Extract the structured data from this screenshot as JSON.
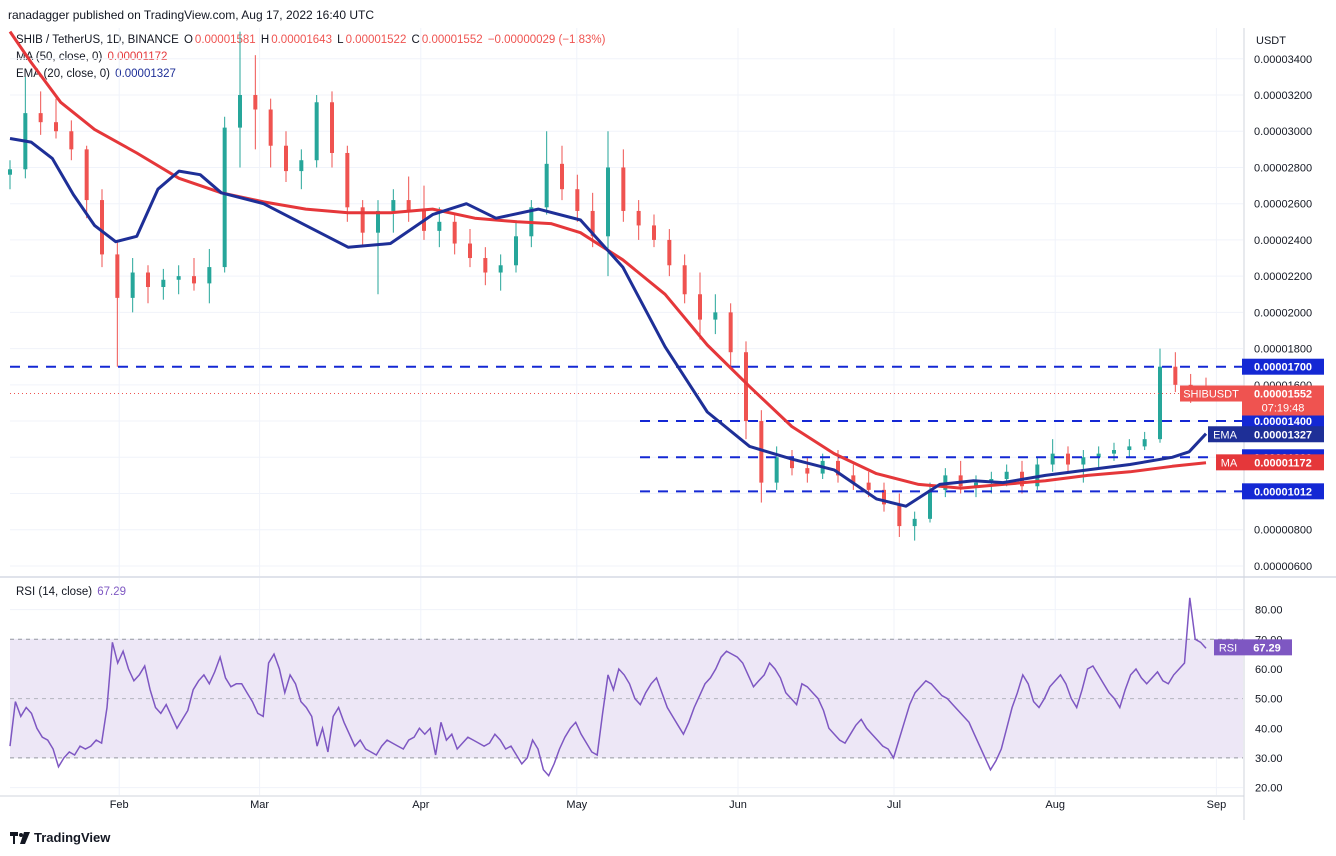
{
  "header": {
    "published_line": "ranadagger published on TradingView.com, Aug 17, 2022 16:40 UTC"
  },
  "legend": {
    "symbol": "SHIB / TetherUS, 1D, BINANCE",
    "o_label": "O",
    "o_value": "0.00001581",
    "h_label": "H",
    "h_value": "0.00001643",
    "l_label": "L",
    "l_value": "0.00001522",
    "c_label": "C",
    "c_value": "0.00001552",
    "change": "−0.00000029 (−1.83%)",
    "ma_label": "MA (50, close, 0)",
    "ma_value": "0.00001172",
    "ema_label": "EMA (20, close, 0)",
    "ema_value": "0.00001327",
    "rsi_label": "RSI (14, close)",
    "rsi_value": "67.29"
  },
  "footer": {
    "brand": "TradingView"
  },
  "colors": {
    "up": "#26a69a",
    "down": "#ef5350",
    "ema": "#1e2f97",
    "ma": "#e5373a",
    "level_line": "#1428d4",
    "rsi": "#7e57c2",
    "rsi_band": "#ede7f6",
    "tag_blue": "#1428d4",
    "tag_red": "#ef5350",
    "tag_purple": "#7e57c2"
  },
  "chart_data": [
    {
      "type": "candlestick",
      "title": "SHIB / TetherUS, 1D, BINANCE",
      "y_axis_unit": "USDT",
      "ylim": [
        6e-06,
        3.55e-05
      ],
      "x_ticks": [
        "Feb",
        "Mar",
        "Apr",
        "May",
        "Jun",
        "Jul",
        "Aug",
        "Sep"
      ],
      "y_ticks": [
        "0.00000600",
        "0.00000800",
        "0.00001000",
        "0.00001200",
        "0.00001400",
        "0.00001600",
        "0.00001800",
        "0.00002000",
        "0.00002200",
        "0.00002400",
        "0.00002600",
        "0.00002800",
        "0.00003000",
        "0.00003200",
        "0.00003400"
      ],
      "series": [
        {
          "name": "MA",
          "label": "MA (50, close, 0)",
          "last": "0.00001172",
          "points": [
            [
              0,
              3.55e-05
            ],
            [
              5,
              3.38e-05
            ],
            [
              12,
              3.16e-05
            ],
            [
              20,
              3.01e-05
            ],
            [
              30,
              2.88e-05
            ],
            [
              40,
              2.74e-05
            ],
            [
              50,
              2.66e-05
            ],
            [
              60,
              2.61e-05
            ],
            [
              70,
              2.57e-05
            ],
            [
              80,
              2.55e-05
            ],
            [
              90,
              2.55e-05
            ],
            [
              100,
              2.57e-05
            ],
            [
              110,
              2.52e-05
            ],
            [
              120,
              2.5e-05
            ],
            [
              128,
              2.49e-05
            ],
            [
              135,
              2.44e-05
            ],
            [
              145,
              2.29e-05
            ],
            [
              155,
              2.1e-05
            ],
            [
              165,
              1.82e-05
            ],
            [
              175,
              1.59e-05
            ],
            [
              185,
              1.37e-05
            ],
            [
              195,
              1.22e-05
            ],
            [
              205,
              1.11e-05
            ],
            [
              215,
              1.05e-05
            ],
            [
              225,
              1.03e-05
            ],
            [
              235,
              1.05e-05
            ],
            [
              245,
              1.07e-05
            ],
            [
              255,
              1.1e-05
            ],
            [
              265,
              1.12e-05
            ],
            [
              275,
              1.15e-05
            ],
            [
              283,
              1.17e-05
            ]
          ]
        },
        {
          "name": "EMA",
          "label": "EMA (20, close, 0)",
          "last": "0.00001327",
          "points": [
            [
              0,
              2.96e-05
            ],
            [
              5,
              2.94e-05
            ],
            [
              10,
              2.85e-05
            ],
            [
              15,
              2.65e-05
            ],
            [
              20,
              2.48e-05
            ],
            [
              25,
              2.39e-05
            ],
            [
              30,
              2.42e-05
            ],
            [
              35,
              2.68e-05
            ],
            [
              40,
              2.78e-05
            ],
            [
              45,
              2.76e-05
            ],
            [
              50,
              2.66e-05
            ],
            [
              60,
              2.6e-05
            ],
            [
              70,
              2.48e-05
            ],
            [
              80,
              2.36e-05
            ],
            [
              90,
              2.38e-05
            ],
            [
              100,
              2.54e-05
            ],
            [
              108,
              2.6e-05
            ],
            [
              115,
              2.52e-05
            ],
            [
              125,
              2.57e-05
            ],
            [
              135,
              2.51e-05
            ],
            [
              145,
              2.25e-05
            ],
            [
              155,
              1.81e-05
            ],
            [
              165,
              1.45e-05
            ],
            [
              175,
              1.26e-05
            ],
            [
              185,
              1.19e-05
            ],
            [
              195,
              1.13e-05
            ],
            [
              205,
              9.7e-06
            ],
            [
              212,
              9.3e-06
            ],
            [
              220,
              1.05e-05
            ],
            [
              228,
              1.07e-05
            ],
            [
              235,
              1.06e-05
            ],
            [
              245,
              1.1e-05
            ],
            [
              255,
              1.13e-05
            ],
            [
              265,
              1.16e-05
            ],
            [
              275,
              1.2e-05
            ],
            [
              279,
              1.23e-05
            ],
            [
              283,
              1.33e-05
            ]
          ]
        }
      ],
      "candles_ohlc": [
        [
          2.76e-05,
          2.84e-05,
          2.68e-05,
          2.79e-05
        ],
        [
          2.79e-05,
          3.3e-05,
          2.74e-05,
          3.1e-05
        ],
        [
          3.1e-05,
          3.22e-05,
          2.98e-05,
          3.05e-05
        ],
        [
          3.05e-05,
          3.18e-05,
          2.96e-05,
          3e-05
        ],
        [
          3e-05,
          3.06e-05,
          2.84e-05,
          2.9e-05
        ],
        [
          2.9e-05,
          2.92e-05,
          2.52e-05,
          2.62e-05
        ],
        [
          2.62e-05,
          2.68e-05,
          2.25e-05,
          2.32e-05
        ],
        [
          2.32e-05,
          2.4e-05,
          1.7e-05,
          2.08e-05
        ],
        [
          2.08e-05,
          2.3e-05,
          2e-05,
          2.22e-05
        ],
        [
          2.22e-05,
          2.26e-05,
          2.05e-05,
          2.14e-05
        ],
        [
          2.14e-05,
          2.24e-05,
          2.07e-05,
          2.18e-05
        ],
        [
          2.18e-05,
          2.26e-05,
          2.1e-05,
          2.2e-05
        ],
        [
          2.2e-05,
          2.3e-05,
          2.12e-05,
          2.16e-05
        ],
        [
          2.16e-05,
          2.35e-05,
          2.05e-05,
          2.25e-05
        ],
        [
          2.25e-05,
          3.08e-05,
          2.22e-05,
          3.02e-05
        ],
        [
          3.02e-05,
          3.55e-05,
          2.8e-05,
          3.2e-05
        ],
        [
          3.2e-05,
          3.42e-05,
          2.9e-05,
          3.12e-05
        ],
        [
          3.12e-05,
          3.18e-05,
          2.8e-05,
          2.92e-05
        ],
        [
          2.92e-05,
          3e-05,
          2.72e-05,
          2.78e-05
        ],
        [
          2.78e-05,
          2.9e-05,
          2.68e-05,
          2.84e-05
        ],
        [
          2.84e-05,
          3.2e-05,
          2.8e-05,
          3.16e-05
        ],
        [
          3.16e-05,
          3.22e-05,
          2.8e-05,
          2.88e-05
        ],
        [
          2.88e-05,
          2.92e-05,
          2.5e-05,
          2.58e-05
        ],
        [
          2.58e-05,
          2.62e-05,
          2.36e-05,
          2.44e-05
        ],
        [
          2.44e-05,
          2.62e-05,
          2.1e-05,
          2.56e-05
        ],
        [
          2.56e-05,
          2.68e-05,
          2.44e-05,
          2.62e-05
        ],
        [
          2.62e-05,
          2.75e-05,
          2.5e-05,
          2.56e-05
        ],
        [
          2.56e-05,
          2.7e-05,
          2.4e-05,
          2.45e-05
        ],
        [
          2.45e-05,
          2.58e-05,
          2.36e-05,
          2.5e-05
        ],
        [
          2.5e-05,
          2.54e-05,
          2.32e-05,
          2.38e-05
        ],
        [
          2.38e-05,
          2.46e-05,
          2.25e-05,
          2.3e-05
        ],
        [
          2.3e-05,
          2.36e-05,
          2.15e-05,
          2.22e-05
        ],
        [
          2.22e-05,
          2.32e-05,
          2.12e-05,
          2.26e-05
        ],
        [
          2.26e-05,
          2.5e-05,
          2.22e-05,
          2.42e-05
        ],
        [
          2.42e-05,
          2.62e-05,
          2.36e-05,
          2.58e-05
        ],
        [
          2.58e-05,
          3e-05,
          2.54e-05,
          2.82e-05
        ],
        [
          2.82e-05,
          2.92e-05,
          2.62e-05,
          2.68e-05
        ],
        [
          2.68e-05,
          2.76e-05,
          2.5e-05,
          2.56e-05
        ],
        [
          2.56e-05,
          2.66e-05,
          2.36e-05,
          2.42e-05
        ],
        [
          2.42e-05,
          3e-05,
          2.2e-05,
          2.8e-05
        ],
        [
          2.8e-05,
          2.9e-05,
          2.5e-05,
          2.56e-05
        ],
        [
          2.56e-05,
          2.62e-05,
          2.4e-05,
          2.48e-05
        ],
        [
          2.48e-05,
          2.54e-05,
          2.36e-05,
          2.4e-05
        ],
        [
          2.4e-05,
          2.46e-05,
          2.2e-05,
          2.26e-05
        ],
        [
          2.26e-05,
          2.32e-05,
          2.05e-05,
          2.1e-05
        ],
        [
          2.1e-05,
          2.22e-05,
          1.85e-05,
          1.96e-05
        ],
        [
          1.96e-05,
          2.1e-05,
          1.88e-05,
          2e-05
        ],
        [
          2e-05,
          2.05e-05,
          1.7e-05,
          1.78e-05
        ],
        [
          1.78e-05,
          1.84e-05,
          1.3e-05,
          1.4e-05
        ],
        [
          1.4e-05,
          1.46e-05,
          9.5e-06,
          1.06e-05
        ],
        [
          1.06e-05,
          1.26e-05,
          1.02e-05,
          1.2e-05
        ],
        [
          1.2e-05,
          1.24e-05,
          1.1e-05,
          1.14e-05
        ],
        [
          1.14e-05,
          1.2e-05,
          1.06e-05,
          1.11e-05
        ],
        [
          1.11e-05,
          1.22e-05,
          1.08e-05,
          1.18e-05
        ],
        [
          1.18e-05,
          1.24e-05,
          1.06e-05,
          1.1e-05
        ],
        [
          1.1e-05,
          1.16e-05,
          1.02e-05,
          1.06e-05
        ],
        [
          1.06e-05,
          1.12e-05,
          9.8e-06,
          1.02e-05
        ],
        [
          1.02e-05,
          1.06e-05,
          9e-06,
          9.4e-06
        ],
        [
          9.4e-06,
          1e-05,
          7.6e-06,
          8.2e-06
        ],
        [
          8.2e-06,
          9e-06,
          7.4e-06,
          8.6e-06
        ],
        [
          8.6e-06,
          1.06e-05,
          8.4e-06,
          1.02e-05
        ],
        [
          1.02e-05,
          1.14e-05,
          9.8e-06,
          1.1e-05
        ],
        [
          1.1e-05,
          1.18e-05,
          1e-05,
          1.04e-05
        ],
        [
          1.04e-05,
          1.1e-05,
          9.8e-06,
          1.06e-05
        ],
        [
          1.06e-05,
          1.12e-05,
          1e-05,
          1.08e-05
        ],
        [
          1.08e-05,
          1.16e-05,
          1.04e-05,
          1.12e-05
        ],
        [
          1.12e-05,
          1.18e-05,
          1e-05,
          1.04e-05
        ],
        [
          1.04e-05,
          1.2e-05,
          1.02e-05,
          1.16e-05
        ],
        [
          1.16e-05,
          1.3e-05,
          1.12e-05,
          1.22e-05
        ],
        [
          1.22e-05,
          1.26e-05,
          1.12e-05,
          1.16e-05
        ],
        [
          1.16e-05,
          1.24e-05,
          1.06e-05,
          1.2e-05
        ],
        [
          1.2e-05,
          1.26e-05,
          1.14e-05,
          1.22e-05
        ],
        [
          1.22e-05,
          1.28e-05,
          1.18e-05,
          1.24e-05
        ],
        [
          1.24e-05,
          1.3e-05,
          1.2e-05,
          1.26e-05
        ],
        [
          1.26e-05,
          1.34e-05,
          1.24e-05,
          1.3e-05
        ],
        [
          1.3e-05,
          1.8e-05,
          1.28e-05,
          1.7e-05
        ],
        [
          1.7e-05,
          1.78e-05,
          1.56e-05,
          1.6e-05
        ],
        [
          1.6e-05,
          1.66e-05,
          1.5e-05,
          1.58e-05
        ],
        [
          1.58e-05,
          1.64e-05,
          1.52e-05,
          1.55e-05
        ]
      ]
    },
    {
      "type": "line",
      "title": "RSI (14, close)",
      "ylim": [
        18,
        90
      ],
      "y_ticks": [
        "20.00",
        "30.00",
        "40.00",
        "50.00",
        "60.00",
        "70.00",
        "80.00"
      ],
      "band": [
        30,
        70
      ],
      "series": [
        {
          "name": "RSI",
          "last": "67.29",
          "values": [
            34,
            49,
            44,
            47,
            45,
            40,
            37,
            36,
            33,
            27,
            30,
            32,
            31,
            34,
            33,
            34,
            36,
            35,
            47,
            69,
            62,
            66,
            60,
            56,
            58,
            61,
            53,
            47,
            45,
            48,
            44,
            40,
            43,
            46,
            53,
            56,
            58,
            55,
            59,
            64,
            57,
            54,
            55,
            55,
            52,
            49,
            45,
            44,
            62,
            65,
            60,
            52,
            58,
            55,
            49,
            47,
            44,
            34,
            40,
            32,
            44,
            47,
            42,
            38,
            34,
            36,
            33,
            32,
            31,
            34,
            36,
            35,
            34,
            33,
            36,
            37,
            40,
            38,
            40,
            31,
            42,
            36,
            38,
            33,
            35,
            37,
            36,
            35,
            34,
            35,
            38,
            36,
            33,
            34,
            31,
            28,
            30,
            36,
            33,
            26,
            24,
            28,
            33,
            37,
            40,
            42,
            38,
            35,
            32,
            31,
            45,
            58,
            53,
            60,
            58,
            55,
            50,
            48,
            52,
            55,
            57,
            52,
            47,
            44,
            41,
            38,
            42,
            47,
            51,
            55,
            57,
            60,
            64,
            66,
            65,
            64,
            62,
            58,
            54,
            56,
            58,
            62,
            60,
            57,
            52,
            50,
            48,
            55,
            54,
            52,
            50,
            46,
            40,
            38,
            36,
            35,
            38,
            41,
            43,
            40,
            38,
            36,
            34,
            33,
            30,
            36,
            42,
            48,
            52,
            54,
            56,
            55,
            53,
            51,
            50,
            48,
            46,
            44,
            42,
            38,
            34,
            30,
            26,
            29,
            33,
            40,
            47,
            52,
            58,
            55,
            49,
            47,
            50,
            54,
            56,
            58,
            55,
            50,
            47,
            53,
            60,
            61,
            58,
            55,
            52,
            50,
            47,
            53,
            58,
            60,
            57,
            55,
            57,
            59,
            56,
            55,
            58,
            60,
            62,
            84,
            70,
            69,
            67
          ]
        }
      ]
    }
  ],
  "levels": {
    "l1700": "0.00001700",
    "l1400": "0.00001400",
    "l1200": "0.00001200",
    "l1012": "0.00001012"
  },
  "price_tags": {
    "current_label": "SHIBUSDT",
    "current_value": "0.00001552",
    "countdown": "07:19:48",
    "ema_label": "EMA",
    "ema_value": "0.00001327",
    "ma_label": "MA",
    "ma_value": "0.00001172",
    "rsi_label": "RSI",
    "rsi_value": "67.29"
  }
}
